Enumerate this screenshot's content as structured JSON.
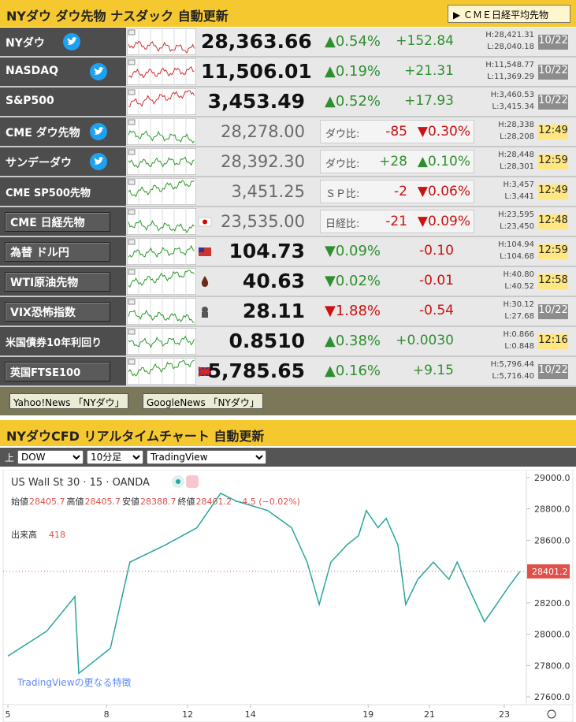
{
  "header": {
    "title": "NYダウ ダウ先物 ナスダック 自動更新",
    "button": "ＣＭＥ日経平均先物"
  },
  "rows": [
    {
      "name": "NYダウ",
      "icon": "twitter",
      "price": "28,363.66",
      "pct": "▲0.54%",
      "chg": "+152.84",
      "high": "H:28,421.31",
      "low": "L:28,040.18",
      "time": "10/22",
      "time_color": "#8c8c8c",
      "pct_color": "#2f8f2f",
      "chg_color": "#2f8f2f"
    },
    {
      "name": "NASDAQ",
      "icon": "twitter",
      "price": "11,506.01",
      "pct": "▲0.19%",
      "chg": "+21.31",
      "high": "H:11,548.77",
      "low": "L:11,369.29",
      "time": "10/22",
      "time_color": "#8c8c8c",
      "pct_color": "#2f8f2f",
      "chg_color": "#2f8f2f"
    },
    {
      "name": "S&P500",
      "price": "3,453.49",
      "pct": "▲0.52%",
      "chg": "+17.93",
      "high": "H:3,460.53",
      "low": "L:3,415.34",
      "time": "10/22",
      "time_color": "#8c8c8c",
      "pct_color": "#2f8f2f",
      "chg_color": "#2f8f2f"
    },
    {
      "name": "CME ダウ先物",
      "icon": "twitter",
      "price": "28,278.00",
      "compare": "ダウ比:",
      "chg": "-85",
      "pct": "▼0.30%",
      "high": "H:28,338",
      "low": "L:28,208",
      "time": "12:49",
      "time_color": "#ffe680",
      "pct_color": "#cc1111",
      "chg_color": "#cc1111"
    },
    {
      "name": "サンデーダウ",
      "icon": "twitter",
      "price": "28,392.30",
      "compare": "ダウ比:",
      "chg": "+28",
      "pct": "▲0.10%",
      "high": "H:28,448",
      "low": "L:28,301",
      "time": "12:59",
      "time_color": "#ffe680",
      "pct_color": "#2f8f2f",
      "chg_color": "#2f8f2f"
    },
    {
      "name": "CME SP500先物",
      "price": "3,451.25",
      "compare": "ＳＰ比:",
      "chg": "-2",
      "pct": "▼0.06%",
      "high": "H:3,457",
      "low": "L:3,441",
      "time": "12:49",
      "time_color": "#ffe680",
      "pct_color": "#cc1111",
      "chg_color": "#cc1111"
    },
    {
      "name": "CME 日経先物",
      "boxed": true,
      "icon": "jp",
      "price": "23,535.00",
      "compare": "日経比:",
      "chg": "-21",
      "pct": "▼0.09%",
      "high": "H:23,595",
      "low": "L:23,450",
      "time": "12:48",
      "time_color": "#ffe680",
      "pct_color": "#cc1111",
      "chg_color": "#cc1111"
    },
    {
      "name": "為替 ドル円",
      "boxed": true,
      "icon": "us",
      "price": "104.73",
      "pct": "▼0.09%",
      "chg": "-0.10",
      "high": "H:104.94",
      "low": "L:104.68",
      "time": "12:59",
      "time_color": "#ffe680",
      "pct_color": "#2f8f2f",
      "chg_color": "#cc1111"
    },
    {
      "name": "WTI原油先物",
      "boxed": true,
      "icon": "oil",
      "price": "40.63",
      "pct": "▼0.02%",
      "chg": "-0.01",
      "high": "H:40.80",
      "low": "L:40.52",
      "time": "12:58",
      "time_color": "#ffe680",
      "pct_color": "#2f8f2f",
      "chg_color": "#cc1111"
    },
    {
      "name": "VIX恐怖指数",
      "boxed": true,
      "icon": "vix",
      "price": "28.11",
      "pct": "▼1.88%",
      "chg": "-0.54",
      "high": "H:30.12",
      "low": "L:27.68",
      "time": "10/22",
      "time_color": "#8c8c8c",
      "pct_color": "#cc1111",
      "chg_color": "#cc1111"
    },
    {
      "name": "米国債券10年利回り",
      "price": "0.8510",
      "pct": "▲0.38%",
      "chg": "+0.0030",
      "high": "H:0.866",
      "low": "L:0.848",
      "time": "12:16",
      "time_color": "#ffe680",
      "pct_color": "#2f8f2f",
      "chg_color": "#2f8f2f"
    },
    {
      "name": "英国FTSE100",
      "boxed": true,
      "icon": "uk",
      "price": "5,785.65",
      "pct": "▲0.16%",
      "chg": "+9.15",
      "high": "H:5,796.44",
      "low": "L:5,716.40",
      "time": "10/22",
      "time_color": "#8c8c8c",
      "pct_color": "#2f8f2f",
      "chg_color": "#2f8f2f"
    }
  ],
  "links": [
    "Yahoo!News 「NYダウ」",
    "GoogleNews 「NYダウ」"
  ],
  "section2": {
    "title": "NYダウCFD リアルタイムチャート 自動更新",
    "label": "上",
    "selects": [
      "DOW",
      "10分足",
      "TradingView"
    ]
  },
  "chart_data": {
    "type": "line",
    "title": "US Wall St 30 · 15 · OANDA",
    "legend": [
      {
        "label": "始値",
        "value": 28405.7
      },
      {
        "label": "高値",
        "value": 28405.7
      },
      {
        "label": "安値",
        "value": 28388.7
      },
      {
        "label": "終値",
        "value": 28401.2
      }
    ],
    "change": "−4.5 (−0.02%)",
    "volume_label": "出来高",
    "volume": 418,
    "last": 28401.2,
    "footer": "TradingViewの更なる特徴",
    "x": [
      0,
      1.1,
      1.89,
      2.0,
      2.89,
      3.44,
      4.44,
      5.33,
      6.0,
      6.44,
      7.33,
      8.0,
      8.44,
      8.78,
      9.11,
      9.56,
      9.89,
      10.11,
      10.44,
      10.67,
      11.0,
      11.22,
      11.56,
      12.0,
      12.44,
      12.67,
      13.11,
      13.44,
      13.78,
      14.11,
      14.44
    ],
    "series": [
      {
        "color": "#26a69a",
        "values": [
          27860,
          28020,
          28240,
          27750,
          27910,
          28460,
          28570,
          28680,
          28900,
          28850,
          28790,
          28680,
          28460,
          28190,
          28460,
          28570,
          28630,
          28790,
          28680,
          28740,
          28570,
          28190,
          28350,
          28460,
          28350,
          28460,
          28240,
          28080,
          28190,
          28300,
          28400
        ]
      }
    ],
    "xlim": [
      0,
      14.6
    ],
    "xticks": [
      {
        "value": 0,
        "label": "5"
      },
      {
        "value": 2.78,
        "label": "8"
      },
      {
        "value": 5.07,
        "label": "12"
      },
      {
        "value": 6.84,
        "label": "14"
      },
      {
        "value": 10.16,
        "label": "19"
      },
      {
        "value": 11.89,
        "label": "21"
      },
      {
        "value": 14.0,
        "label": "23"
      }
    ],
    "ylim": [
      27550,
      29050
    ],
    "yticks": [
      {
        "value": 29000,
        "label": "29000.0"
      },
      {
        "value": 28800,
        "label": "28800.0"
      },
      {
        "value": 28600,
        "label": "28600.0"
      },
      {
        "value": 28400,
        "label": "28400.0"
      },
      {
        "value": 28200,
        "label": "28200.0"
      },
      {
        "value": 28000,
        "label": "28000.0"
      },
      {
        "value": 27800,
        "label": "27800.0"
      },
      {
        "value": 27600,
        "label": "27600.0"
      }
    ]
  }
}
